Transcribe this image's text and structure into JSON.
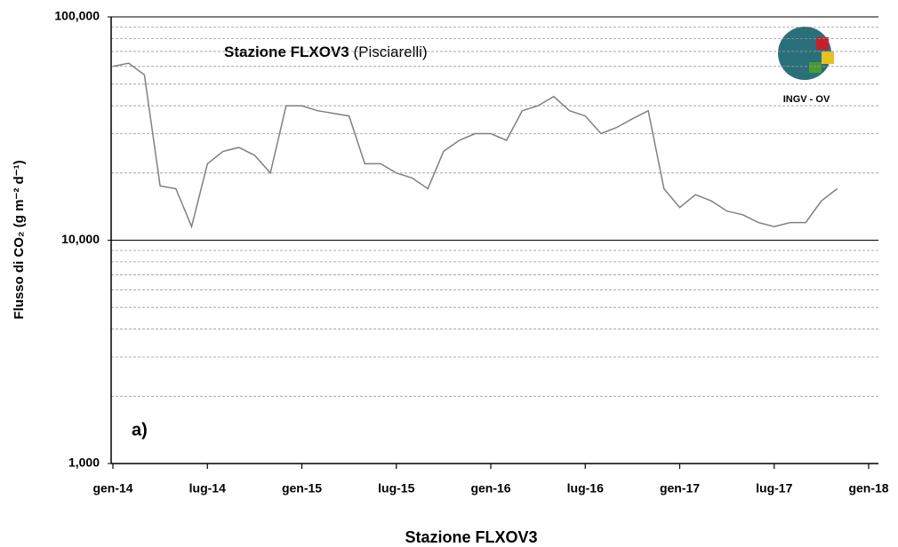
{
  "chart_data": {
    "type": "line",
    "title": "Stazione FLXOV3",
    "title_note": "(Pisciarelli)",
    "y_label": "Flusso di CO₂ (g m⁻² d⁻¹)",
    "x_label": "Stazione FLXOV3",
    "annotation": "a)",
    "logo_text": "INGV - OV",
    "log_scale": true,
    "color": "#808080",
    "x": [
      "2014-01",
      "2014-02",
      "2014-03",
      "2014-04",
      "2014-05",
      "2014-06",
      "2014-07",
      "2014-08",
      "2014-09",
      "2014-10",
      "2014-11",
      "2014-12",
      "2015-01",
      "2015-02",
      "2015-03",
      "2015-04",
      "2015-05",
      "2015-06",
      "2015-07",
      "2015-08",
      "2015-09",
      "2015-10",
      "2015-11",
      "2015-12",
      "2016-01",
      "2016-02",
      "2016-03",
      "2016-04",
      "2016-05",
      "2016-06",
      "2016-07",
      "2016-08",
      "2016-09",
      "2016-10",
      "2016-11",
      "2016-12",
      "2017-01",
      "2017-02",
      "2017-03",
      "2017-04",
      "2017-05",
      "2017-06",
      "2017-07",
      "2017-08",
      "2017-09",
      "2017-10",
      "2017-11"
    ],
    "values": [
      60000,
      62000,
      55000,
      17500,
      17000,
      11500,
      22000,
      25000,
      26000,
      24000,
      20000,
      40000,
      40000,
      38000,
      37000,
      36000,
      22000,
      22000,
      20000,
      19000,
      17000,
      25000,
      28000,
      30000,
      30000,
      28000,
      38000,
      40000,
      44000,
      38000,
      36000,
      30000,
      32000,
      35000,
      38000,
      17000,
      14000,
      16000,
      15000,
      13500,
      13000,
      12000,
      11500,
      12000,
      12000,
      15000,
      17000
    ],
    "xlim": [
      "2014-01",
      "2018-01"
    ],
    "xticks": [
      {
        "value": "2014-01",
        "label": "gen-14"
      },
      {
        "value": "2014-07",
        "label": "lug-14"
      },
      {
        "value": "2015-01",
        "label": "gen-15"
      },
      {
        "value": "2015-07",
        "label": "lug-15"
      },
      {
        "value": "2016-01",
        "label": "gen-16"
      },
      {
        "value": "2016-07",
        "label": "lug-16"
      },
      {
        "value": "2017-01",
        "label": "gen-17"
      },
      {
        "value": "2017-07",
        "label": "lug-17"
      },
      {
        "value": "2018-01",
        "label": "gen-18"
      }
    ],
    "ylim": [
      1000,
      100000
    ],
    "yticks": [
      {
        "value": 1000,
        "label": "1,000"
      },
      {
        "value": 10000,
        "label": "10,000"
      },
      {
        "value": 100000,
        "label": "100,000"
      }
    ],
    "minor_yticks": [
      2000,
      3000,
      4000,
      5000,
      6000,
      7000,
      8000,
      9000,
      20000,
      30000,
      40000,
      50000,
      60000,
      70000,
      80000,
      90000
    ],
    "grid": true
  }
}
